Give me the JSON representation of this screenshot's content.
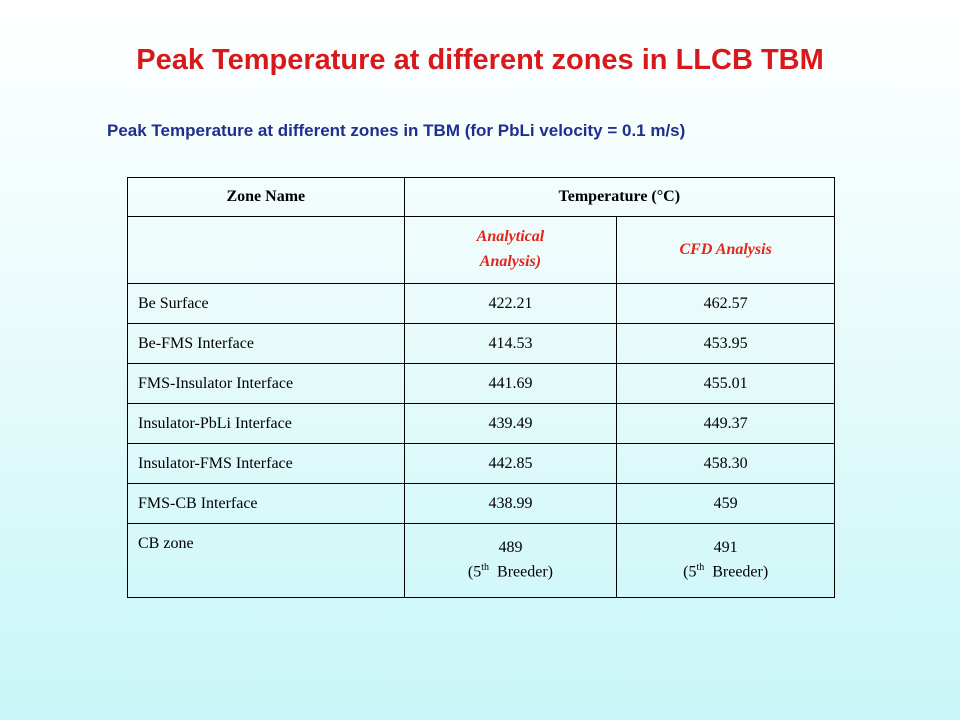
{
  "title": "Peak Temperature at different zones in LLCB TBM",
  "subtitle": "Peak Temperature at different zones in TBM (for PbLi velocity = 0.1 m/s)",
  "table": {
    "headers": {
      "zone": "Zone Name",
      "temperature": "Temperature (°C)"
    },
    "subheaders": {
      "empty": "",
      "analytical_line1": "Analytical",
      "analytical_line2": "Analysis)",
      "cfd": "CFD Analysis"
    },
    "rows": [
      {
        "zone": "Be Surface",
        "analytical": "422.21",
        "cfd": "462.57"
      },
      {
        "zone": "Be-FMS Interface",
        "analytical": "414.53",
        "cfd": "453.95"
      },
      {
        "zone": "FMS-Insulator Interface",
        "analytical": "441.69",
        "cfd": "455.01"
      },
      {
        "zone": "Insulator-PbLi Interface",
        "analytical": "439.49",
        "cfd": "449.37"
      },
      {
        "zone": "Insulator-FMS Interface",
        "analytical": "442.85",
        "cfd": "458.30"
      },
      {
        "zone": "FMS-CB Interface",
        "analytical": "438.99",
        "cfd": "459"
      }
    ],
    "last_row": {
      "zone": "CB zone",
      "analytical_value": "489",
      "cfd_value": "491",
      "note_open": "(5",
      "note_sup": "th",
      "note_close": "Breeder)"
    }
  }
}
